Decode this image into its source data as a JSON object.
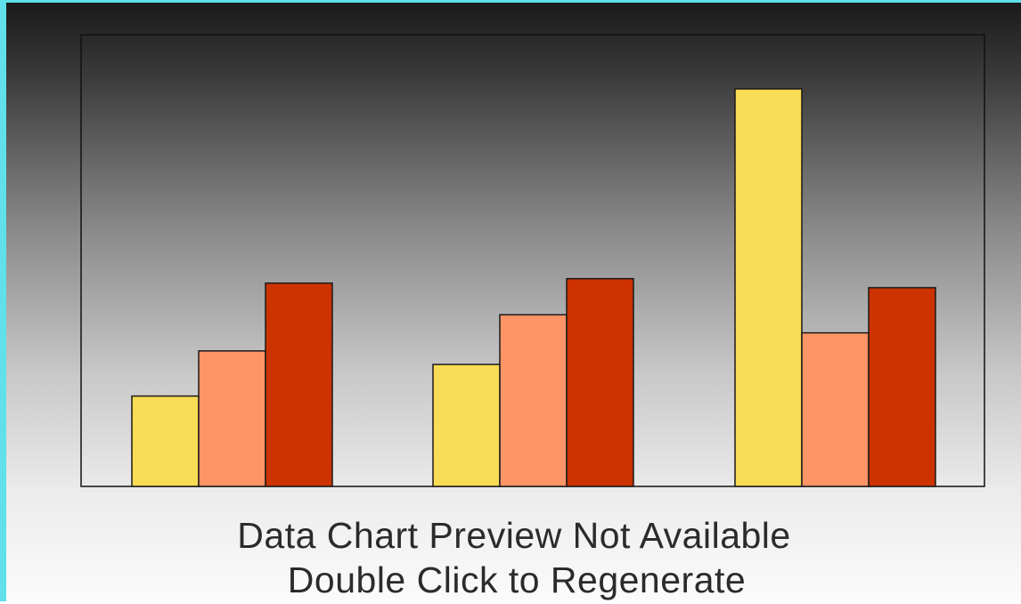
{
  "preview": {
    "line1": "Data Chart Preview Not Available",
    "line2": "Double Click to Regenerate"
  },
  "colors": {
    "frame_border": "#5fe0ea",
    "series_1": "#f9dc55",
    "series_2": "#fe9566",
    "series_3": "#cc3300"
  },
  "chart_data": {
    "type": "bar",
    "categories": [
      "",
      "",
      ""
    ],
    "series": [
      {
        "values": [
          2.0,
          2.7,
          8.8
        ]
      },
      {
        "values": [
          3.0,
          3.8,
          3.4
        ]
      },
      {
        "values": [
          4.5,
          4.6,
          4.4
        ]
      }
    ],
    "ylim": [
      0,
      10
    ],
    "grid": false,
    "legend": "none",
    "xlabel": "",
    "ylabel": "",
    "title": ""
  }
}
